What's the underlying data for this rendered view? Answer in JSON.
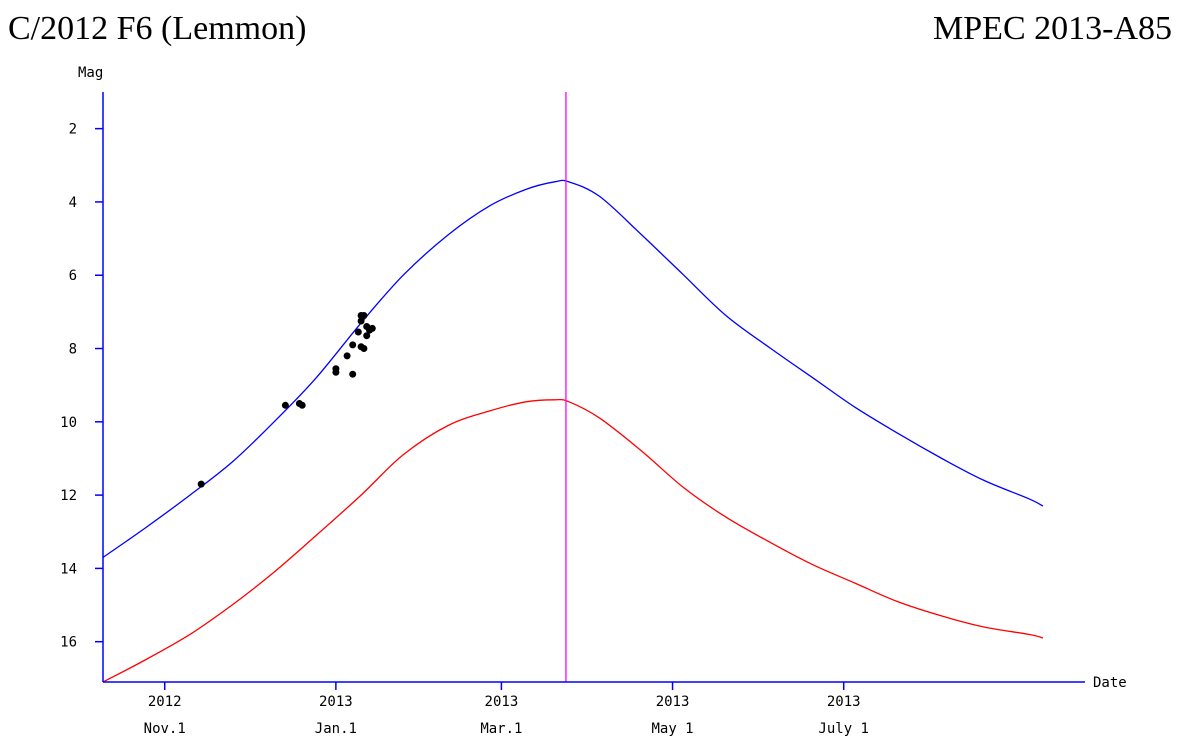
{
  "chart_data": {
    "type": "line",
    "title": "C/2012 F6 (Lemmon)",
    "subtitle": "MPEC 2013-A85",
    "ylabel": "Mag",
    "xlabel": "Date",
    "y_inverted": true,
    "ylim": [
      17.1,
      1.0
    ],
    "xlim": [
      "2012-10-10",
      "2013-09-25"
    ],
    "y_ticks": [
      2,
      4,
      6,
      8,
      10,
      12,
      14,
      16
    ],
    "x_ticks": [
      {
        "date": "2012-11-01",
        "year": "2012",
        "label": "Nov.1"
      },
      {
        "date": "2013-01-01",
        "year": "2013",
        "label": "Jan.1"
      },
      {
        "date": "2013-03-01",
        "year": "2013",
        "label": "Mar.1"
      },
      {
        "date": "2013-05-01",
        "year": "2013",
        "label": "May 1"
      },
      {
        "date": "2013-07-01",
        "year": "2013",
        "label": "July 1"
      }
    ],
    "vline": {
      "date": "2013-03-24",
      "color": "#ff00ff"
    },
    "series": [
      {
        "color": "#0000ff",
        "points": [
          [
            "2012-10-10",
            13.7
          ],
          [
            "2012-10-25",
            12.9
          ],
          [
            "2012-11-10",
            12.0
          ],
          [
            "2012-11-25",
            11.1
          ],
          [
            "2012-12-10",
            10.0
          ],
          [
            "2012-12-25",
            8.8
          ],
          [
            "2013-01-10",
            7.3
          ],
          [
            "2013-01-25",
            6.0
          ],
          [
            "2013-02-10",
            4.9
          ],
          [
            "2013-02-25",
            4.1
          ],
          [
            "2013-03-10",
            3.65
          ],
          [
            "2013-03-20",
            3.45
          ],
          [
            "2013-03-25",
            3.45
          ],
          [
            "2013-04-05",
            3.85
          ],
          [
            "2013-04-20",
            4.9
          ],
          [
            "2013-05-05",
            6.0
          ],
          [
            "2013-05-20",
            7.1
          ],
          [
            "2013-06-05",
            8.0
          ],
          [
            "2013-06-20",
            8.8
          ],
          [
            "2013-07-05",
            9.6
          ],
          [
            "2013-07-20",
            10.3
          ],
          [
            "2013-08-05",
            11.0
          ],
          [
            "2013-08-20",
            11.6
          ],
          [
            "2013-09-05",
            12.1
          ],
          [
            "2013-09-10",
            12.3
          ]
        ]
      },
      {
        "color": "#ff0000",
        "points": [
          [
            "2012-10-10",
            17.1
          ],
          [
            "2012-10-25",
            16.5
          ],
          [
            "2012-11-10",
            15.8
          ],
          [
            "2012-11-25",
            15.0
          ],
          [
            "2012-12-10",
            14.1
          ],
          [
            "2012-12-25",
            13.1
          ],
          [
            "2013-01-10",
            12.0
          ],
          [
            "2013-01-25",
            10.9
          ],
          [
            "2013-02-10",
            10.1
          ],
          [
            "2013-02-25",
            9.7
          ],
          [
            "2013-03-10",
            9.45
          ],
          [
            "2013-03-20",
            9.4
          ],
          [
            "2013-03-25",
            9.45
          ],
          [
            "2013-04-05",
            9.9
          ],
          [
            "2013-04-20",
            10.8
          ],
          [
            "2013-05-05",
            11.8
          ],
          [
            "2013-05-20",
            12.6
          ],
          [
            "2013-06-05",
            13.3
          ],
          [
            "2013-06-20",
            13.9
          ],
          [
            "2013-07-05",
            14.4
          ],
          [
            "2013-07-20",
            14.9
          ],
          [
            "2013-08-05",
            15.3
          ],
          [
            "2013-08-20",
            15.6
          ],
          [
            "2013-09-05",
            15.8
          ],
          [
            "2013-09-10",
            15.9
          ]
        ]
      }
    ],
    "observations": [
      [
        "2012-11-14",
        11.7
      ],
      [
        "2012-12-14",
        9.55
      ],
      [
        "2012-12-19",
        9.5
      ],
      [
        "2012-12-20",
        9.55
      ],
      [
        "2013-01-01",
        8.65
      ],
      [
        "2013-01-01",
        8.55
      ],
      [
        "2013-01-05",
        8.2
      ],
      [
        "2013-01-07",
        7.9
      ],
      [
        "2013-01-07",
        8.7
      ],
      [
        "2013-01-09",
        7.55
      ],
      [
        "2013-01-10",
        7.95
      ],
      [
        "2013-01-10",
        7.25
      ],
      [
        "2013-01-10",
        7.1
      ],
      [
        "2013-01-11",
        7.1
      ],
      [
        "2013-01-11",
        8.0
      ],
      [
        "2013-01-12",
        7.65
      ],
      [
        "2013-01-12",
        7.4
      ],
      [
        "2013-01-13",
        7.5
      ],
      [
        "2013-01-14",
        7.45
      ]
    ]
  }
}
